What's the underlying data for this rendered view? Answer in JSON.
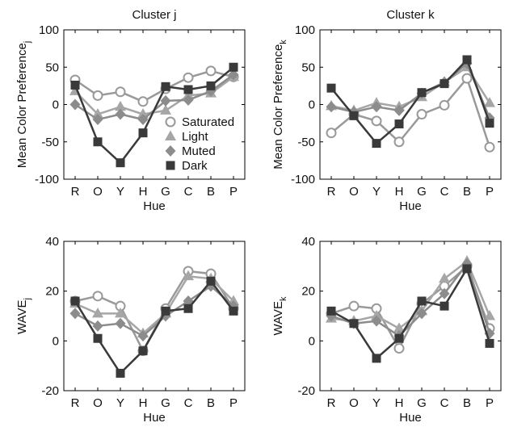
{
  "series_styles": {
    "Saturated": {
      "color": "#999999",
      "marker": "circle-open"
    },
    "Light": {
      "color": "#a6a6a6",
      "marker": "triangle"
    },
    "Muted": {
      "color": "#8c8c8c",
      "marker": "diamond"
    },
    "Dark": {
      "color": "#3a3a3a",
      "marker": "square"
    }
  },
  "legend": {
    "placement": "center-right",
    "panel": 0,
    "entries": [
      "Saturated",
      "Light",
      "Muted",
      "Dark"
    ]
  },
  "chart_data": [
    {
      "type": "line",
      "title": "Cluster j",
      "xlabel": "Hue",
      "ylabel": "Mean Color Preference",
      "ylabel_sub": "j",
      "categories": [
        "R",
        "O",
        "Y",
        "H",
        "G",
        "C",
        "B",
        "P"
      ],
      "ylim": [
        -100,
        100
      ],
      "yticks": [
        -100,
        -50,
        0,
        50,
        100
      ],
      "series": [
        {
          "name": "Saturated",
          "values": [
            33,
            12,
            17,
            4,
            21,
            36,
            45,
            37
          ]
        },
        {
          "name": "Light",
          "values": [
            18,
            -13,
            -3,
            -13,
            -8,
            12,
            15,
            37
          ]
        },
        {
          "name": "Muted",
          "values": [
            0,
            -20,
            -13,
            -20,
            5,
            6,
            18,
            40
          ]
        },
        {
          "name": "Dark",
          "values": [
            26,
            -50,
            -78,
            -38,
            24,
            20,
            25,
            50
          ]
        }
      ]
    },
    {
      "type": "line",
      "title": "Cluster k",
      "xlabel": "Hue",
      "ylabel": "Mean Color Preference",
      "ylabel_sub": "k",
      "categories": [
        "R",
        "O",
        "Y",
        "H",
        "G",
        "C",
        "B",
        "P"
      ],
      "ylim": [
        -100,
        100
      ],
      "yticks": [
        -100,
        -50,
        0,
        50,
        100
      ],
      "series": [
        {
          "name": "Saturated",
          "values": [
            -38,
            -13,
            -22,
            -50,
            -13,
            -1,
            35,
            -57
          ]
        },
        {
          "name": "Light",
          "values": [
            -2,
            -8,
            2,
            -3,
            10,
            30,
            50,
            2
          ]
        },
        {
          "name": "Muted",
          "values": [
            -3,
            -10,
            -3,
            -8,
            15,
            30,
            55,
            -18
          ]
        },
        {
          "name": "Dark",
          "values": [
            22,
            -15,
            -52,
            -26,
            16,
            28,
            60,
            -25
          ]
        }
      ]
    },
    {
      "type": "line",
      "title": "",
      "xlabel": "Hue",
      "ylabel": "WAVE",
      "ylabel_sub": "j",
      "categories": [
        "R",
        "O",
        "Y",
        "H",
        "G",
        "C",
        "B",
        "P"
      ],
      "ylim": [
        -20,
        40
      ],
      "yticks": [
        -20,
        0,
        20,
        40
      ],
      "series": [
        {
          "name": "Saturated",
          "values": [
            16,
            18,
            14,
            -4,
            13,
            28,
            27,
            13
          ]
        },
        {
          "name": "Light",
          "values": [
            15,
            11,
            11,
            3,
            11,
            26,
            25,
            16
          ]
        },
        {
          "name": "Muted",
          "values": [
            11,
            6,
            7,
            2,
            10,
            16,
            22,
            14
          ]
        },
        {
          "name": "Dark",
          "values": [
            16,
            1,
            -13,
            -4,
            12,
            13,
            24,
            12
          ]
        }
      ]
    },
    {
      "type": "line",
      "title": "",
      "xlabel": "Hue",
      "ylabel": "WAVE",
      "ylabel_sub": "k",
      "categories": [
        "R",
        "O",
        "Y",
        "H",
        "G",
        "C",
        "B",
        "P"
      ],
      "ylim": [
        -20,
        40
      ],
      "yticks": [
        -20,
        0,
        20,
        40
      ],
      "series": [
        {
          "name": "Saturated",
          "values": [
            11,
            14,
            13,
            -3,
            15,
            22,
            30,
            5
          ]
        },
        {
          "name": "Light",
          "values": [
            9,
            8,
            10,
            5,
            12,
            25,
            32,
            10
          ]
        },
        {
          "name": "Muted",
          "values": [
            10,
            7,
            8,
            2,
            11,
            19,
            31,
            3
          ]
        },
        {
          "name": "Dark",
          "values": [
            12,
            7,
            -7,
            1,
            16,
            14,
            29,
            -1
          ]
        }
      ]
    }
  ]
}
